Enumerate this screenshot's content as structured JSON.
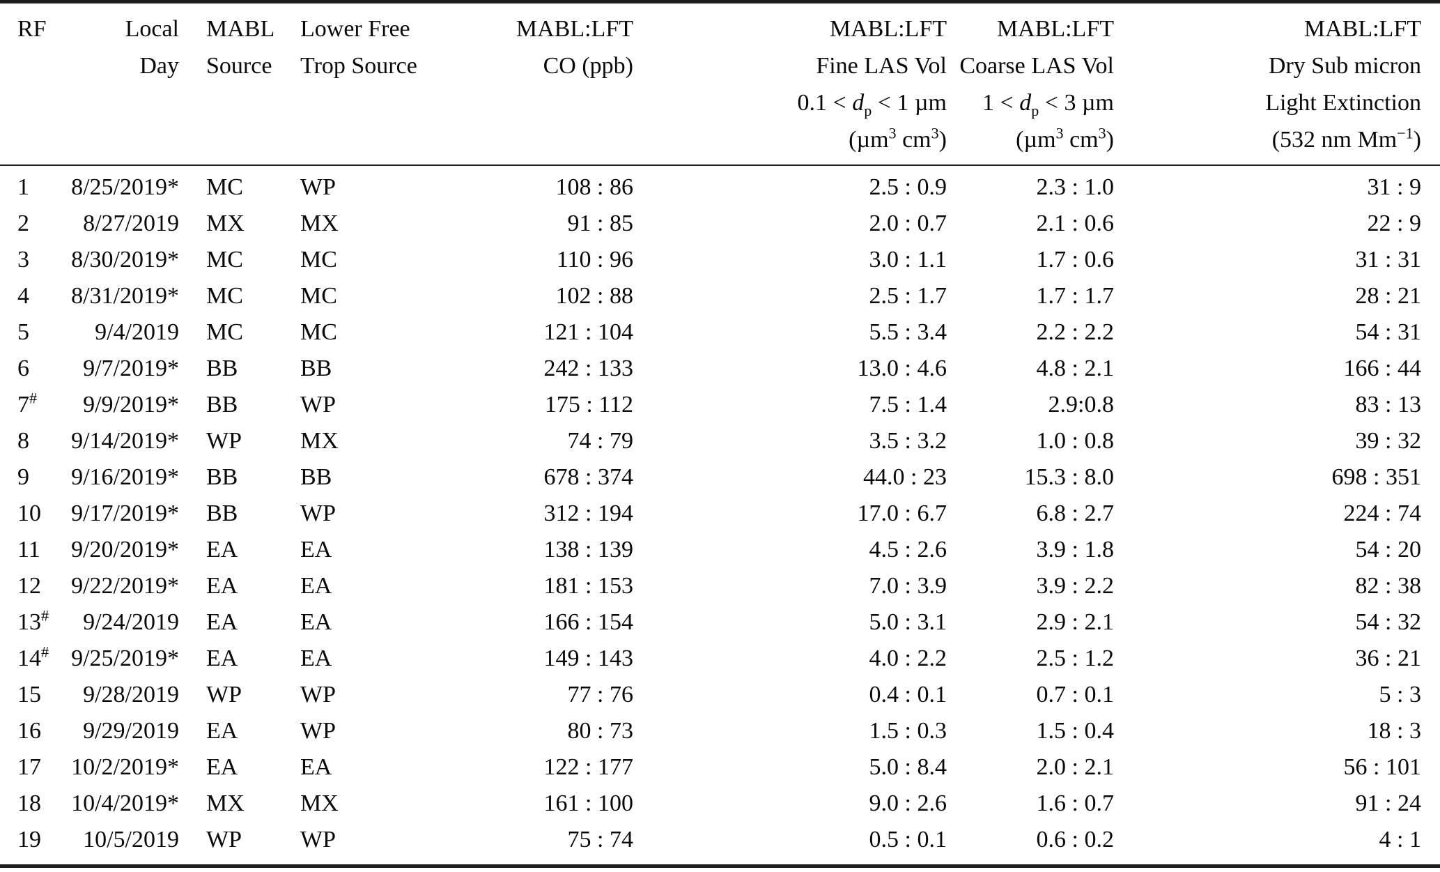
{
  "table": {
    "columns": [
      {
        "key": "rf",
        "header": [
          [
            {
              "t": "RF"
            }
          ]
        ]
      },
      {
        "key": "day",
        "header": [
          [
            {
              "t": "Local"
            }
          ],
          [
            {
              "t": "Day"
            }
          ]
        ]
      },
      {
        "key": "mabl",
        "header": [
          [
            {
              "t": "MABL"
            }
          ],
          [
            {
              "t": "Source"
            }
          ]
        ]
      },
      {
        "key": "lft",
        "header": [
          [
            {
              "t": "Lower Free"
            }
          ],
          [
            {
              "t": "Trop Source"
            }
          ]
        ]
      },
      {
        "key": "co",
        "header": [
          [
            {
              "t": "MABL:LFT"
            }
          ],
          [
            {
              "t": "CO (ppb)"
            }
          ]
        ]
      },
      {
        "key": "fine",
        "header": [
          [
            {
              "t": "MABL:LFT"
            }
          ],
          [
            {
              "t": "Fine LAS Vol"
            }
          ],
          [
            {
              "t": "0.1 < "
            },
            {
              "t": "d",
              "style": "italic"
            },
            {
              "t": "p",
              "style": "sub"
            },
            {
              "t": " < 1 µm"
            }
          ],
          [
            {
              "t": "(µm"
            },
            {
              "t": "3",
              "style": "sup"
            },
            {
              "t": " cm"
            },
            {
              "t": "3",
              "style": "sup"
            },
            {
              "t": ")"
            }
          ]
        ]
      },
      {
        "key": "coarse",
        "header": [
          [
            {
              "t": "MABL:LFT"
            }
          ],
          [
            {
              "t": "Coarse LAS Vol"
            }
          ],
          [
            {
              "t": "1 < "
            },
            {
              "t": "d",
              "style": "italic"
            },
            {
              "t": "p",
              "style": "sub"
            },
            {
              "t": " < 3 µm"
            }
          ],
          [
            {
              "t": "(µm"
            },
            {
              "t": "3",
              "style": "sup"
            },
            {
              "t": " cm"
            },
            {
              "t": "3",
              "style": "sup"
            },
            {
              "t": ")"
            }
          ]
        ]
      },
      {
        "key": "ext",
        "header": [
          [
            {
              "t": "MABL:LFT"
            }
          ],
          [
            {
              "t": "Dry Sub micron"
            }
          ],
          [
            {
              "t": "Light Extinction"
            }
          ],
          [
            {
              "t": "(532 nm Mm"
            },
            {
              "t": "−1",
              "style": "sup"
            },
            {
              "t": ")"
            }
          ]
        ]
      }
    ],
    "rows": [
      {
        "rf": "1",
        "rf_sup": "",
        "day": "8/25/2019*",
        "mabl": "MC",
        "lft": "WP",
        "co": "108 : 86",
        "fine": "2.5 : 0.9",
        "coarse": "2.3 : 1.0",
        "ext": "31 : 9"
      },
      {
        "rf": "2",
        "rf_sup": "",
        "day": "8/27/2019",
        "mabl": "MX",
        "lft": "MX",
        "co": "91 : 85",
        "fine": "2.0 : 0.7",
        "coarse": "2.1 : 0.6",
        "ext": "22 : 9"
      },
      {
        "rf": "3",
        "rf_sup": "",
        "day": "8/30/2019*",
        "mabl": "MC",
        "lft": "MC",
        "co": "110 : 96",
        "fine": "3.0 : 1.1",
        "coarse": "1.7 : 0.6",
        "ext": "31 : 31"
      },
      {
        "rf": "4",
        "rf_sup": "",
        "day": "8/31/2019*",
        "mabl": "MC",
        "lft": "MC",
        "co": "102 : 88",
        "fine": "2.5 : 1.7",
        "coarse": "1.7 : 1.7",
        "ext": "28 : 21"
      },
      {
        "rf": "5",
        "rf_sup": "",
        "day": "9/4/2019",
        "mabl": "MC",
        "lft": "MC",
        "co": "121 : 104",
        "fine": "5.5 : 3.4",
        "coarse": "2.2 : 2.2",
        "ext": "54 : 31"
      },
      {
        "rf": "6",
        "rf_sup": "",
        "day": "9/7/2019*",
        "mabl": "BB",
        "lft": "BB",
        "co": "242 : 133",
        "fine": "13.0 : 4.6",
        "coarse": "4.8 : 2.1",
        "ext": "166 : 44"
      },
      {
        "rf": "7",
        "rf_sup": "#",
        "day": "9/9/2019*",
        "mabl": "BB",
        "lft": "WP",
        "co": "175 : 112",
        "fine": "7.5 : 1.4",
        "coarse": "2.9:0.8",
        "ext": "83 : 13"
      },
      {
        "rf": "8",
        "rf_sup": "",
        "day": "9/14/2019*",
        "mabl": "WP",
        "lft": "MX",
        "co": "74 : 79",
        "fine": "3.5 : 3.2",
        "coarse": "1.0 : 0.8",
        "ext": "39 : 32"
      },
      {
        "rf": "9",
        "rf_sup": "",
        "day": "9/16/2019*",
        "mabl": "BB",
        "lft": "BB",
        "co": "678 : 374",
        "fine": "44.0 : 23",
        "coarse": "15.3 : 8.0",
        "ext": "698 : 351"
      },
      {
        "rf": "10",
        "rf_sup": "",
        "day": "9/17/2019*",
        "mabl": "BB",
        "lft": "WP",
        "co": "312 : 194",
        "fine": "17.0 : 6.7",
        "coarse": "6.8 : 2.7",
        "ext": "224 : 74"
      },
      {
        "rf": "11",
        "rf_sup": "",
        "day": "9/20/2019*",
        "mabl": "EA",
        "lft": "EA",
        "co": "138 : 139",
        "fine": "4.5 : 2.6",
        "coarse": "3.9 : 1.8",
        "ext": "54 : 20"
      },
      {
        "rf": "12",
        "rf_sup": "",
        "day": "9/22/2019*",
        "mabl": "EA",
        "lft": "EA",
        "co": "181 : 153",
        "fine": "7.0 : 3.9",
        "coarse": "3.9 : 2.2",
        "ext": "82 : 38"
      },
      {
        "rf": "13",
        "rf_sup": "#",
        "day": "9/24/2019",
        "mabl": "EA",
        "lft": "EA",
        "co": "166 : 154",
        "fine": "5.0 : 3.1",
        "coarse": "2.9 : 2.1",
        "ext": "54 : 32"
      },
      {
        "rf": "14",
        "rf_sup": "#",
        "day": "9/25/2019*",
        "mabl": "EA",
        "lft": "EA",
        "co": "149 : 143",
        "fine": "4.0 : 2.2",
        "coarse": "2.5 : 1.2",
        "ext": "36 : 21"
      },
      {
        "rf": "15",
        "rf_sup": "",
        "day": "9/28/2019",
        "mabl": "WP",
        "lft": "WP",
        "co": "77 : 76",
        "fine": "0.4 : 0.1",
        "coarse": "0.7 : 0.1",
        "ext": "5 : 3"
      },
      {
        "rf": "16",
        "rf_sup": "",
        "day": "9/29/2019",
        "mabl": "EA",
        "lft": "WP",
        "co": "80 : 73",
        "fine": "1.5 : 0.3",
        "coarse": "1.5 : 0.4",
        "ext": "18 : 3"
      },
      {
        "rf": "17",
        "rf_sup": "",
        "day": "10/2/2019*",
        "mabl": "EA",
        "lft": "EA",
        "co": "122 : 177",
        "fine": "5.0 : 8.4",
        "coarse": "2.0 : 2.1",
        "ext": "56 : 101"
      },
      {
        "rf": "18",
        "rf_sup": "",
        "day": "10/4/2019*",
        "mabl": "MX",
        "lft": "MX",
        "co": "161 : 100",
        "fine": "9.0 : 2.6",
        "coarse": "1.6 : 0.7",
        "ext": "91 : 24"
      },
      {
        "rf": "19",
        "rf_sup": "",
        "day": "10/5/2019",
        "mabl": "WP",
        "lft": "WP",
        "co": "75 : 74",
        "fine": "0.5 : 0.1",
        "coarse": "0.6 : 0.2",
        "ext": "4 : 1"
      }
    ]
  },
  "colors": {
    "text": "#0a0a0a",
    "rule": "#1c1c1c",
    "background": "#ffffff"
  }
}
